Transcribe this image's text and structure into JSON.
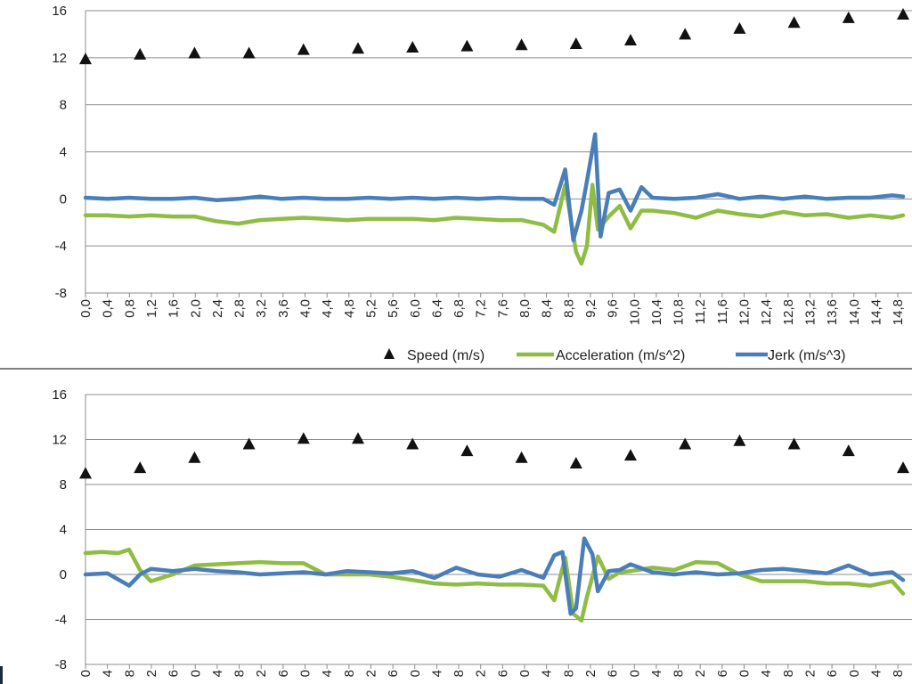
{
  "charts": [
    {
      "legend": [
        {
          "label": "Speed (m/s)"
        },
        {
          "label": "Acceleration (m/s^2)"
        },
        {
          "label": "Jerk (m/s^3)"
        }
      ]
    },
    {
      "legend": []
    }
  ],
  "chart_data": [
    {
      "type": "line",
      "ylim": [
        -8,
        16
      ],
      "yticks": [
        16,
        12,
        8,
        4,
        0,
        -4,
        -8
      ],
      "xlim": [
        0,
        15.0
      ],
      "xtick_labels": [
        "0,0",
        "0,4",
        "0,8",
        "1,2",
        "1,6",
        "2,0",
        "2,4",
        "2,8",
        "3,2",
        "3,6",
        "4,0",
        "4,4",
        "4,8",
        "5,2",
        "5,6",
        "6,0",
        "6,4",
        "6,8",
        "7,2",
        "7,6",
        "8,0",
        "8,4",
        "8,8",
        "9,2",
        "9,6",
        "10,0",
        "10,4",
        "10,8",
        "11,2",
        "11,6",
        "12,0",
        "12,4",
        "12,8",
        "13,2",
        "13,6",
        "14,0",
        "14,4",
        "14,8"
      ],
      "grid": "horizontal",
      "legend_position": "bottom",
      "colors": {
        "speed": "#111111",
        "acceleration": "#8fbc45",
        "jerk": "#4a7eb8"
      },
      "series": [
        {
          "name": "Speed (m/s)",
          "style": "triangle-marker",
          "x": [
            0.0,
            1.0,
            2.0,
            3.0,
            4.0,
            5.0,
            6.0,
            7.0,
            8.0,
            9.0,
            10.0,
            11.0,
            12.0,
            13.0,
            14.0,
            15.0
          ],
          "values": [
            11.9,
            12.3,
            12.4,
            12.4,
            12.7,
            12.8,
            12.9,
            13.0,
            13.1,
            13.2,
            13.5,
            14.0,
            14.5,
            15.0,
            15.4,
            15.7
          ]
        },
        {
          "name": "Acceleration (m/s^2)",
          "style": "line",
          "x": [
            0.0,
            0.4,
            0.8,
            1.2,
            1.6,
            2.0,
            2.4,
            2.8,
            3.2,
            3.6,
            4.0,
            4.4,
            4.8,
            5.2,
            5.6,
            6.0,
            6.4,
            6.8,
            7.2,
            7.6,
            8.0,
            8.4,
            8.6,
            8.8,
            9.0,
            9.1,
            9.2,
            9.3,
            9.4,
            9.6,
            9.8,
            10.0,
            10.2,
            10.4,
            10.8,
            11.2,
            11.6,
            12.0,
            12.4,
            12.8,
            13.2,
            13.6,
            14.0,
            14.4,
            14.8,
            15.0
          ],
          "values": [
            -1.4,
            -1.4,
            -1.5,
            -1.4,
            -1.5,
            -1.5,
            -1.9,
            -2.1,
            -1.8,
            -1.7,
            -1.6,
            -1.7,
            -1.8,
            -1.7,
            -1.7,
            -1.7,
            -1.8,
            -1.6,
            -1.7,
            -1.8,
            -1.8,
            -2.2,
            -2.8,
            1.2,
            -4.5,
            -5.5,
            -4.0,
            1.2,
            -2.6,
            -1.5,
            -0.6,
            -2.5,
            -1.0,
            -1.0,
            -1.2,
            -1.6,
            -1.0,
            -1.3,
            -1.5,
            -1.1,
            -1.4,
            -1.3,
            -1.6,
            -1.4,
            -1.6,
            -1.4
          ]
        },
        {
          "name": "Jerk (m/s^3)",
          "style": "line",
          "x": [
            0.0,
            0.4,
            0.8,
            1.2,
            1.6,
            2.0,
            2.4,
            2.8,
            3.2,
            3.6,
            4.0,
            4.4,
            4.8,
            5.2,
            5.6,
            6.0,
            6.4,
            6.8,
            7.2,
            7.6,
            8.0,
            8.4,
            8.6,
            8.8,
            8.95,
            9.1,
            9.2,
            9.35,
            9.45,
            9.6,
            9.8,
            10.0,
            10.2,
            10.4,
            10.8,
            11.2,
            11.6,
            12.0,
            12.4,
            12.8,
            13.2,
            13.6,
            14.0,
            14.4,
            14.8,
            15.0
          ],
          "values": [
            0.1,
            0.0,
            0.1,
            0.0,
            0.0,
            0.1,
            -0.1,
            0.0,
            0.2,
            0.0,
            0.1,
            0.0,
            0.0,
            0.1,
            0.0,
            0.1,
            0.0,
            0.1,
            0.0,
            0.1,
            0.0,
            0.0,
            -0.5,
            2.5,
            -3.5,
            -1.0,
            1.5,
            5.5,
            -3.2,
            0.5,
            0.8,
            -1.0,
            1.0,
            0.1,
            0.0,
            0.1,
            0.4,
            0.0,
            0.2,
            0.0,
            0.2,
            0.0,
            0.1,
            0.1,
            0.3,
            0.2
          ]
        }
      ]
    },
    {
      "type": "line",
      "ylim": [
        -8,
        16
      ],
      "yticks": [
        16,
        12,
        8,
        4,
        0,
        -4,
        -8
      ],
      "xlim": [
        0,
        15.0
      ],
      "xtick_labels": [
        "0",
        "4",
        "8",
        "2",
        "6",
        "0",
        "4",
        "8",
        "2",
        "6",
        "0",
        "4",
        "8",
        "2",
        "6",
        "0",
        "4",
        "8",
        "2",
        "6",
        "0",
        "4",
        "8",
        "2",
        "6",
        "0",
        "4",
        "8",
        "2",
        "6",
        "0",
        "4",
        "8",
        "2",
        "6",
        "0",
        "4",
        "8"
      ],
      "grid": "horizontal",
      "colors": {
        "speed": "#111111",
        "acceleration": "#8fbc45",
        "jerk": "#4a7eb8"
      },
      "series": [
        {
          "style": "triangle-marker",
          "x": [
            0.0,
            1.0,
            2.0,
            3.0,
            4.0,
            5.0,
            6.0,
            7.0,
            8.0,
            9.0,
            10.0,
            11.0,
            12.0,
            13.0,
            14.0,
            15.0
          ],
          "values": [
            9.0,
            9.5,
            10.4,
            11.6,
            12.1,
            12.1,
            11.6,
            11.0,
            10.4,
            9.9,
            10.6,
            11.6,
            11.9,
            11.6,
            11.0,
            9.5
          ]
        },
        {
          "style": "line",
          "x": [
            0.0,
            0.3,
            0.6,
            0.8,
            1.0,
            1.2,
            1.6,
            2.0,
            2.4,
            2.8,
            3.2,
            3.6,
            4.0,
            4.4,
            4.8,
            5.2,
            5.6,
            6.0,
            6.4,
            6.8,
            7.2,
            7.6,
            8.0,
            8.4,
            8.6,
            8.8,
            8.95,
            9.1,
            9.2,
            9.4,
            9.6,
            9.8,
            10.0,
            10.4,
            10.8,
            11.2,
            11.6,
            12.0,
            12.4,
            12.8,
            13.2,
            13.6,
            14.0,
            14.4,
            14.8,
            15.0
          ],
          "values": [
            1.9,
            2.0,
            1.9,
            2.2,
            0.4,
            -0.6,
            0.0,
            0.8,
            0.9,
            1.0,
            1.1,
            1.0,
            1.0,
            0.0,
            0.0,
            0.0,
            -0.2,
            -0.5,
            -0.8,
            -0.9,
            -0.8,
            -0.9,
            -0.9,
            -1.0,
            -2.3,
            1.5,
            -3.5,
            -4.1,
            -2.0,
            1.6,
            -0.4,
            0.2,
            0.3,
            0.6,
            0.4,
            1.1,
            1.0,
            0.0,
            -0.6,
            -0.6,
            -0.6,
            -0.8,
            -0.8,
            -1.0,
            -0.6,
            -1.7
          ]
        },
        {
          "style": "line",
          "x": [
            0.0,
            0.4,
            0.8,
            1.0,
            1.2,
            1.6,
            2.0,
            2.4,
            2.8,
            3.2,
            3.6,
            4.0,
            4.4,
            4.8,
            5.2,
            5.6,
            6.0,
            6.4,
            6.8,
            7.2,
            7.6,
            8.0,
            8.4,
            8.6,
            8.75,
            8.9,
            9.0,
            9.15,
            9.3,
            9.4,
            9.6,
            9.8,
            10.0,
            10.4,
            10.8,
            11.2,
            11.6,
            12.0,
            12.4,
            12.8,
            13.2,
            13.6,
            14.0,
            14.4,
            14.8,
            15.0
          ],
          "values": [
            0.0,
            0.1,
            -1.0,
            0.0,
            0.5,
            0.3,
            0.5,
            0.3,
            0.2,
            0.0,
            0.1,
            0.2,
            0.0,
            0.3,
            0.2,
            0.1,
            0.3,
            -0.3,
            0.6,
            0.0,
            -0.2,
            0.4,
            -0.3,
            1.7,
            2.0,
            -3.5,
            -3.0,
            3.2,
            1.8,
            -1.5,
            0.3,
            0.4,
            0.9,
            0.2,
            0.0,
            0.2,
            0.0,
            0.1,
            0.4,
            0.5,
            0.3,
            0.1,
            0.8,
            0.0,
            0.2,
            -0.5
          ]
        }
      ]
    }
  ]
}
